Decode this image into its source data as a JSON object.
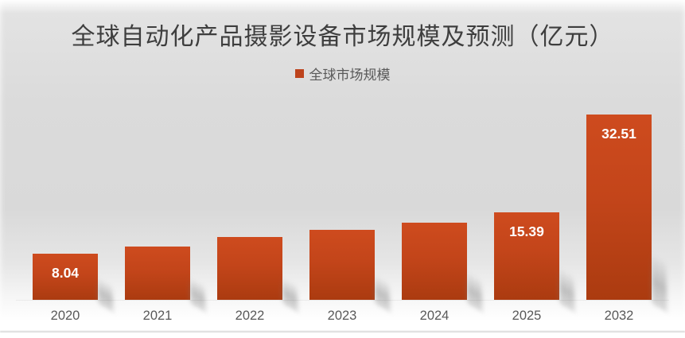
{
  "chart_data": {
    "type": "bar",
    "title": "全球自动化产品摄影设备市场规模及预测（亿元）",
    "unit": "亿元",
    "categories": [
      "2020",
      "2021",
      "2022",
      "2023",
      "2024",
      "2025",
      "2032"
    ],
    "series": [
      {
        "name": "全球市场规模",
        "values": [
          8.04,
          9.4,
          11.0,
          12.2,
          13.5,
          15.39,
          32.51
        ],
        "color_top": "#ce4b1e",
        "color_bottom": "#ab3b10"
      }
    ],
    "data_labels": [
      "8.04",
      null,
      null,
      null,
      null,
      "15.39",
      "32.51"
    ],
    "legend": [
      {
        "label": "全球市场规模",
        "color": "#bd431c"
      }
    ],
    "legend_position": "top-center",
    "xlabel": "",
    "ylabel": "",
    "ylim": [
      0,
      34
    ],
    "grid": false,
    "value_label_color": "#ffffff",
    "axis_label_color": "#595959",
    "background": "gray-gradient"
  }
}
